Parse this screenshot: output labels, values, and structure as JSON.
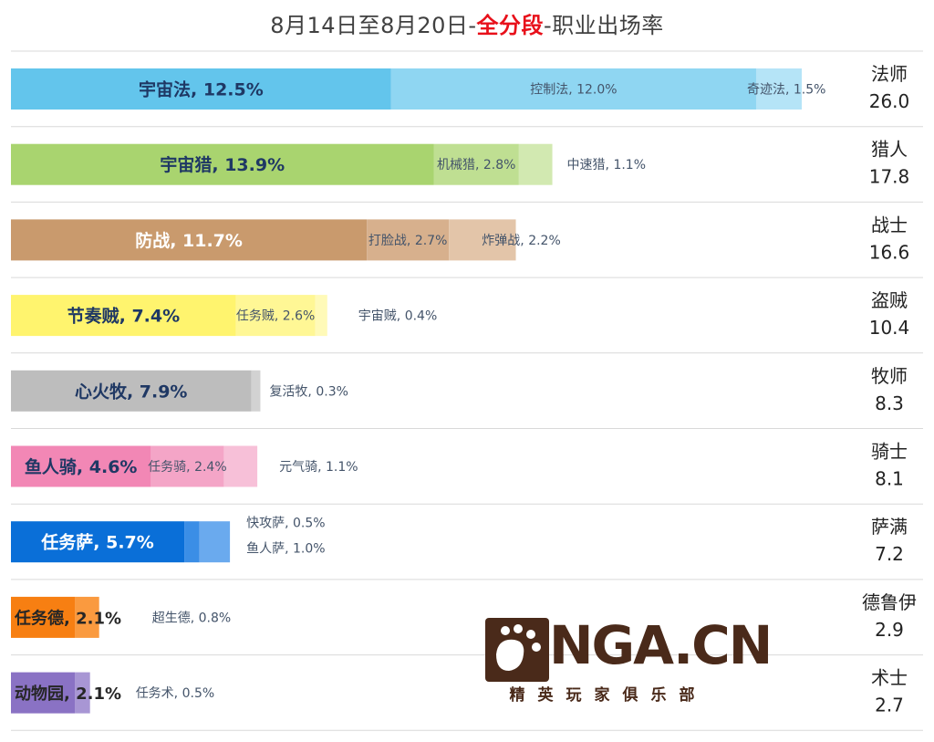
{
  "title": {
    "prefix": "8月14日至8月20日-",
    "highlight": "全分段",
    "suffix": "-职业出场率"
  },
  "chart_data": {
    "type": "bar",
    "stacked": true,
    "orientation": "horizontal",
    "categories": [
      "法师",
      "猎人",
      "战士",
      "盗贼",
      "牧师",
      "骑士",
      "萨满",
      "德鲁伊",
      "术士"
    ],
    "totals": [
      "26.0",
      "17.8",
      "16.6",
      "10.4",
      "8.3",
      "8.1",
      "7.2",
      "2.9",
      "2.7"
    ],
    "rows": [
      {
        "class": "法师",
        "total": 26.0,
        "segments": [
          {
            "label": "宇宙法, 12.5%",
            "value": 12.5
          },
          {
            "label": "控制法, 12.0%",
            "value": 12.0
          },
          {
            "label": "奇迹法, 1.5%",
            "value": 1.5
          }
        ]
      },
      {
        "class": "猎人",
        "total": 17.8,
        "segments": [
          {
            "label": "宇宙猎, 13.9%",
            "value": 13.9
          },
          {
            "label": "机械猎, 2.8%",
            "value": 2.8
          },
          {
            "label": "中速猎, 1.1%",
            "value": 1.1
          }
        ]
      },
      {
        "class": "战士",
        "total": 16.6,
        "segments": [
          {
            "label": "防战, 11.7%",
            "value": 11.7
          },
          {
            "label": "打脸战, 2.7%",
            "value": 2.7
          },
          {
            "label": "炸弹战, 2.2%",
            "value": 2.2
          }
        ]
      },
      {
        "class": "盗贼",
        "total": 10.4,
        "segments": [
          {
            "label": "节奏贼, 7.4%",
            "value": 7.4
          },
          {
            "label": "任务贼, 2.6%",
            "value": 2.6
          },
          {
            "label": "宇宙贼, 0.4%",
            "value": 0.4
          }
        ]
      },
      {
        "class": "牧师",
        "total": 8.3,
        "segments": [
          {
            "label": "心火牧, 7.9%",
            "value": 7.9
          },
          {
            "label": "复活牧, 0.3%",
            "value": 0.3
          }
        ]
      },
      {
        "class": "骑士",
        "total": 8.1,
        "segments": [
          {
            "label": "鱼人骑, 4.6%",
            "value": 4.6
          },
          {
            "label": "任务骑, 2.4%",
            "value": 2.4
          },
          {
            "label": "元气骑, 1.1%",
            "value": 1.1
          }
        ]
      },
      {
        "class": "萨满",
        "total": 7.2,
        "segments": [
          {
            "label": "任务萨, 5.7%",
            "value": 5.7
          },
          {
            "label": "快攻萨, 0.5%",
            "value": 0.5
          },
          {
            "label": "鱼人萨, 1.0%",
            "value": 1.0
          }
        ]
      },
      {
        "class": "德鲁伊",
        "total": 2.9,
        "segments": [
          {
            "label": "任务德, 2.1%",
            "value": 2.1
          },
          {
            "label": "超生德, 0.8%",
            "value": 0.8
          }
        ]
      },
      {
        "class": "术士",
        "total": 2.7,
        "segments": [
          {
            "label": "动物园, 2.1%",
            "value": 2.1
          },
          {
            "label": "任务术, 0.5%",
            "value": 0.5
          }
        ]
      }
    ],
    "xlim": [
      0,
      26.0
    ],
    "grid": false,
    "legend": "none"
  },
  "colors": {
    "法师": [
      "#63c5ec",
      "#8fd6f2",
      "#b5e4f7"
    ],
    "猎人": [
      "#a9d46f",
      "#bfdf92",
      "#d2e9b1"
    ],
    "战士": [
      "#c99a6d",
      "#d7b08d",
      "#e3c5a9"
    ],
    "盗贼": [
      "#fff46e",
      "#fff795",
      "#fffab8"
    ],
    "牧师": [
      "#bdbdbd",
      "#d2d2d2"
    ],
    "骑士": [
      "#f287b5",
      "#f4a5c7",
      "#f7c0d8"
    ],
    "萨满": [
      "#0a6fd8",
      "#3b8ee6",
      "#6aaaee"
    ],
    "德鲁伊": [
      "#f77f12",
      "#fa9a3f"
    ],
    "术士": [
      "#8a72c4",
      "#a896d4"
    ],
    "separator": "#d9d9d9",
    "total_text": "#222222",
    "minor_label": "#44546a"
  },
  "watermark": {
    "brand": "NGA.CN",
    "tagline": "精英玩家俱乐部",
    "color": "#4a2a1a"
  }
}
